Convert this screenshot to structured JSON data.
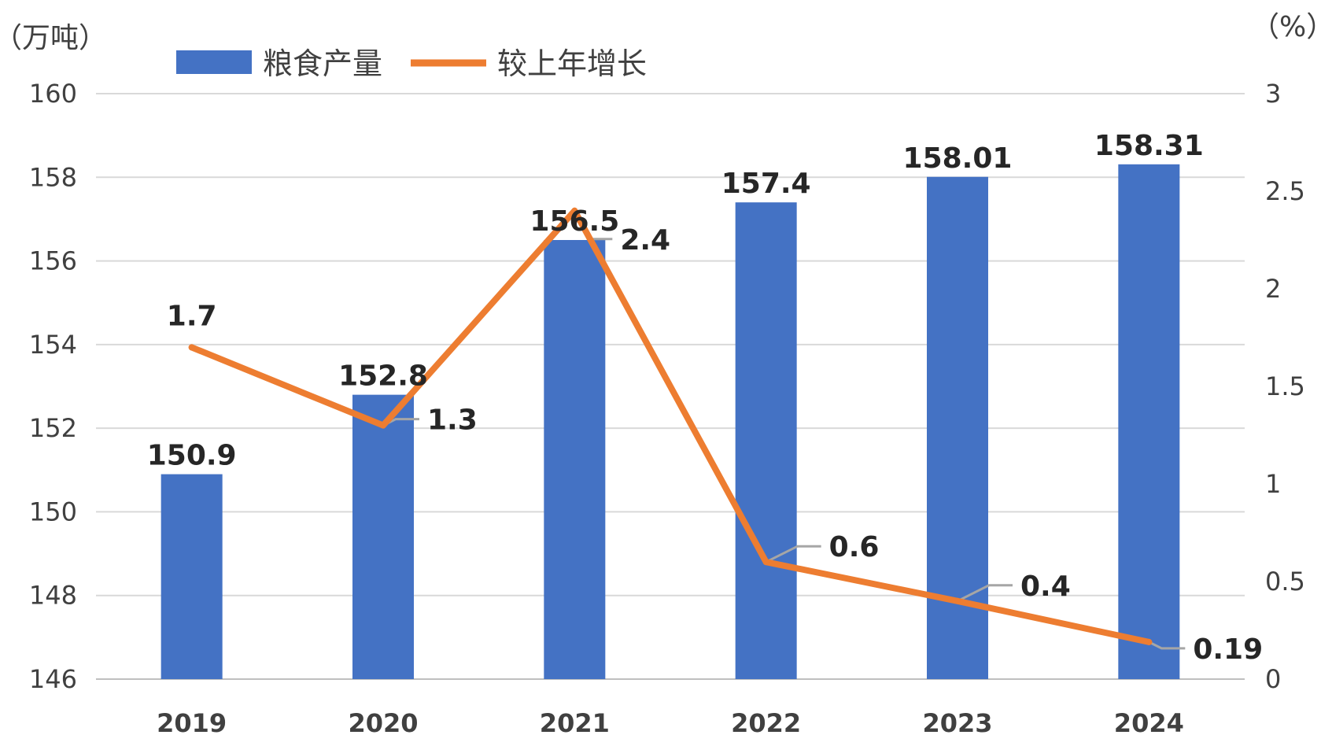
{
  "chart_data": {
    "type": "bar+line",
    "categories": [
      "2019",
      "2020",
      "2021",
      "2022",
      "2023",
      "2024"
    ],
    "series": [
      {
        "name": "粮食产量",
        "type": "bar",
        "axis": "left",
        "values": [
          150.9,
          152.8,
          156.5,
          157.4,
          158.01,
          158.31
        ],
        "labels": [
          "150.9",
          "152.8",
          "156.5",
          "157.4",
          "158.01",
          "158.31"
        ],
        "color": "#4472C4"
      },
      {
        "name": "较上年增长",
        "type": "line",
        "axis": "right",
        "values": [
          1.7,
          1.3,
          2.4,
          0.6,
          0.4,
          0.19
        ],
        "labels": [
          "1.7",
          "1.3",
          "2.4",
          "0.6",
          "0.4",
          "0.19"
        ],
        "color": "#ED7D31"
      }
    ],
    "y_left": {
      "unit": "（万吨）",
      "ylim": [
        146,
        160
      ],
      "ticks": [
        "146",
        "148",
        "150",
        "152",
        "154",
        "156",
        "158",
        "160"
      ]
    },
    "y_right": {
      "unit": "（%）",
      "ylim": [
        0,
        3
      ],
      "ticks": [
        "0",
        "0.5",
        "1",
        "1.5",
        "2",
        "2.5",
        "3"
      ]
    },
    "grid": true,
    "legend": "top",
    "leader_line_color": "#A6A6A6",
    "grid_color": "#D9D9D9"
  }
}
